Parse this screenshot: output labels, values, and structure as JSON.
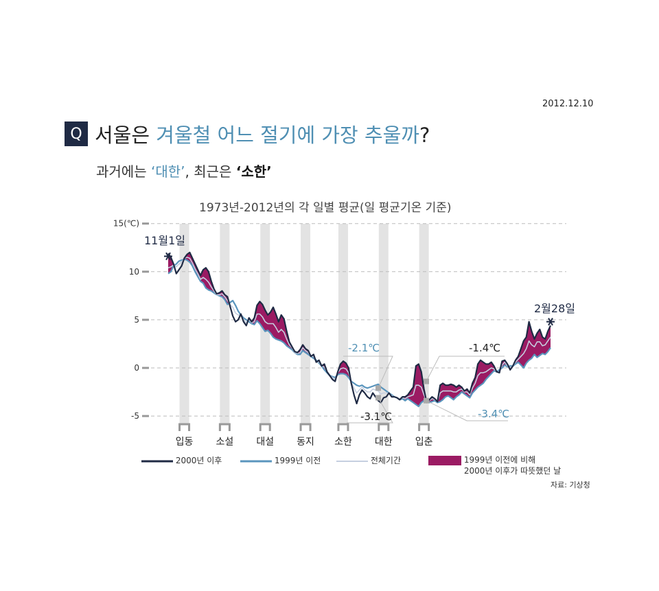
{
  "header": {
    "date": "2012.12.10",
    "q_label": "Q",
    "title_a": "서울은 ",
    "title_b": "겨울철 어느 절기에 가장 추울까",
    "title_c": "?",
    "subtitle_a": "과거에는 ",
    "subtitle_b": "‘대한’",
    "subtitle_c": ",  최근은 ",
    "subtitle_d": "‘소한’"
  },
  "source": "자료: 기상청",
  "colors": {
    "after2000": "#1f2a44",
    "before1999": "#5a95bd",
    "overall": "#c5cfe0",
    "warmer_fill": "#9b1b63",
    "term_band": "#e3e3e3",
    "accent_blue": "#4f8fb3"
  },
  "chart_data": {
    "type": "line",
    "title": "1973년-2012년의 각 일별 평균(일 평균기온 기준)",
    "ylabel_unit": "15(℃)",
    "ylim": [
      -6,
      15
    ],
    "yticks": [
      {
        "value": 15,
        "label": "15(℃)"
      },
      {
        "value": 10,
        "label": "10"
      },
      {
        "value": 5,
        "label": "5"
      },
      {
        "value": 0,
        "label": "0"
      },
      {
        "value": -5,
        "label": "-5"
      }
    ],
    "x_range": [
      "11-01",
      "02-28"
    ],
    "solar_terms": [
      {
        "date": "11-07",
        "label": "입동"
      },
      {
        "date": "11-22",
        "label": "소설"
      },
      {
        "date": "12-07",
        "label": "대설"
      },
      {
        "date": "12-22",
        "label": "동지"
      },
      {
        "date": "01-05",
        "label": "소한"
      },
      {
        "date": "01-20",
        "label": "대한"
      },
      {
        "date": "02-04",
        "label": "입춘"
      }
    ],
    "endpoint_labels": {
      "start": "11월1일",
      "end": "2월28일"
    },
    "annotations": [
      {
        "label": "-2.1℃",
        "series": "1999년 이전",
        "term": "소한"
      },
      {
        "label": "-3.1℃",
        "series": "2000년 이후",
        "term": "소한"
      },
      {
        "label": "-1.4℃",
        "series": "2000년 이후",
        "term": "대한"
      },
      {
        "label": "-3.4℃",
        "series": "1999년 이전",
        "term": "대한"
      }
    ],
    "series": [
      {
        "name": "2000년 이후",
        "values": [
          11.9,
          11.5,
          10.8,
          9.8,
          10.2,
          10.6,
          11.4,
          11.8,
          12.0,
          11.4,
          10.8,
          10.2,
          9.6,
          10.2,
          10.4,
          10.0,
          9.0,
          8.2,
          7.7,
          7.8,
          8.0,
          7.6,
          7.4,
          6.4,
          5.4,
          4.8,
          5.0,
          5.6,
          4.8,
          4.4,
          5.2,
          4.8,
          5.2,
          6.5,
          6.9,
          6.6,
          6.0,
          5.5,
          5.8,
          6.3,
          5.6,
          4.8,
          5.5,
          5.1,
          3.8,
          2.7,
          2.2,
          1.7,
          1.6,
          1.9,
          2.4,
          2.0,
          1.8,
          1.2,
          1.4,
          0.6,
          0.8,
          0.2,
          0.4,
          -0.4,
          -0.8,
          -1.2,
          -1.4,
          -0.4,
          0.4,
          0.7,
          0.5,
          0.0,
          -1.6,
          -2.8,
          -3.7,
          -2.8,
          -2.3,
          -2.6,
          -3.0,
          -3.2,
          -2.6,
          -3.0,
          -3.4,
          -3.6,
          -3.1,
          -3.0,
          -2.6,
          -3.0,
          -3.0,
          -3.1,
          -3.3,
          -3.0,
          -3.0,
          -2.8,
          -2.4,
          -2.0,
          0.2,
          0.4,
          -0.4,
          -2.2,
          -3.6,
          -3.3,
          -3.0,
          -3.2,
          -3.5,
          -1.8,
          -1.6,
          -1.8,
          -1.8,
          -1.7,
          -1.8,
          -2.0,
          -1.8,
          -2.0,
          -2.4,
          -2.2,
          -2.6,
          -1.6,
          -1.0,
          0.4,
          0.8,
          0.6,
          0.4,
          0.4,
          0.6,
          0.2,
          -0.4,
          -0.5,
          0.7,
          0.8,
          0.4,
          -0.2,
          0.2,
          0.8,
          1.2,
          2.0,
          2.8,
          3.2,
          4.8,
          3.8,
          3.0,
          3.6,
          4.0,
          3.2,
          3.0,
          3.8,
          4.4
        ]
      },
      {
        "name": "1999년 이전",
        "values": [
          9.8,
          10.0,
          10.6,
          10.8,
          11.1,
          11.2,
          11.3,
          11.2,
          11.0,
          10.6,
          10.0,
          9.5,
          9.0,
          8.8,
          8.3,
          8.1,
          8.0,
          7.8,
          7.6,
          7.5,
          7.4,
          7.1,
          6.6,
          6.8,
          7.0,
          6.5,
          5.9,
          5.5,
          5.2,
          5.0,
          4.8,
          4.6,
          4.5,
          4.9,
          4.6,
          4.2,
          3.8,
          3.9,
          3.6,
          3.2,
          3.0,
          2.9,
          2.8,
          2.6,
          2.3,
          2.1,
          1.9,
          1.6,
          1.4,
          1.4,
          1.8,
          1.6,
          1.4,
          1.2,
          1.0,
          0.8,
          0.5,
          0.2,
          -0.2,
          -0.5,
          -0.8,
          -0.9,
          -1.0,
          -0.7,
          -0.6,
          -0.6,
          -0.7,
          -1.0,
          -1.4,
          -1.6,
          -1.8,
          -1.9,
          -1.8,
          -2.0,
          -2.1,
          -2.0,
          -1.9,
          -1.8,
          -1.7,
          -2.0,
          -2.2,
          -2.4,
          -2.6,
          -2.8,
          -3.0,
          -3.1,
          -3.3,
          -3.2,
          -3.4,
          -3.2,
          -3.4,
          -3.6,
          -3.8,
          -4.0,
          -3.6,
          -3.4,
          -3.5,
          -3.6,
          -3.5,
          -3.4,
          -3.6,
          -3.5,
          -3.3,
          -3.0,
          -2.9,
          -3.1,
          -3.3,
          -3.0,
          -2.8,
          -2.5,
          -2.7,
          -2.9,
          -3.1,
          -2.6,
          -2.3,
          -2.0,
          -1.8,
          -1.6,
          -1.2,
          -0.9,
          -0.6,
          -0.3,
          -0.4,
          -0.2,
          0.0,
          0.3,
          0.1,
          0.2,
          0.2,
          0.4,
          0.6,
          0.3,
          0.0,
          0.5,
          0.8,
          1.0,
          1.4,
          1.1,
          1.3,
          1.5,
          1.4,
          1.7,
          2.1
        ]
      },
      {
        "name": "전체기간",
        "values": [
          10.4,
          10.5,
          10.7,
          10.5,
          10.8,
          11.0,
          11.4,
          11.5,
          11.4,
          10.9,
          10.3,
          9.8,
          9.2,
          9.4,
          9.2,
          8.9,
          8.4,
          8.0,
          7.6,
          7.6,
          7.7,
          7.4,
          7.0,
          6.6,
          6.3,
          5.7,
          5.5,
          5.5,
          5.0,
          4.7,
          5.0,
          4.7,
          4.8,
          5.6,
          5.6,
          5.3,
          4.8,
          4.6,
          4.6,
          4.6,
          4.2,
          3.7,
          4.0,
          3.7,
          3.0,
          2.4,
          2.1,
          1.6,
          1.5,
          1.6,
          2.1,
          1.8,
          1.6,
          1.2,
          1.2,
          0.7,
          0.6,
          0.2,
          0.1,
          -0.4,
          -0.8,
          -1.0,
          -1.2,
          -0.5,
          -0.1,
          0.0,
          -0.1,
          -0.5,
          -1.5,
          -2.1,
          -2.6,
          -2.3,
          -2.0,
          -2.3,
          -2.5,
          -2.5,
          -2.2,
          -2.3,
          -2.4,
          -2.7,
          -2.6,
          -2.6,
          -2.6,
          -2.9,
          -3.0,
          -3.1,
          -3.3,
          -3.1,
          -3.2,
          -3.0,
          -2.9,
          -2.8,
          -1.8,
          -1.8,
          -2.0,
          -2.8,
          -3.5,
          -3.4,
          -3.2,
          -3.3,
          -3.5,
          -2.6,
          -2.4,
          -2.4,
          -2.4,
          -2.4,
          -2.5,
          -2.5,
          -2.3,
          -2.2,
          -2.5,
          -2.5,
          -2.8,
          -2.1,
          -1.6,
          -0.8,
          -0.5,
          -0.5,
          -0.4,
          -0.2,
          0.0,
          -0.1,
          -0.4,
          -0.4,
          0.3,
          0.6,
          0.2,
          0.0,
          0.2,
          0.6,
          0.9,
          1.2,
          1.5,
          2.0,
          2.8,
          2.4,
          2.2,
          2.7,
          2.7,
          2.3,
          2.4,
          2.8,
          3.2
        ]
      }
    ]
  },
  "legend": {
    "after2000": "2000년 이후",
    "before1999": "1999년 이전",
    "overall": "전체기간",
    "warmer_line1": "1999년 이전에 비해",
    "warmer_line2": "2000년 이후가 따뜻했던 날"
  }
}
